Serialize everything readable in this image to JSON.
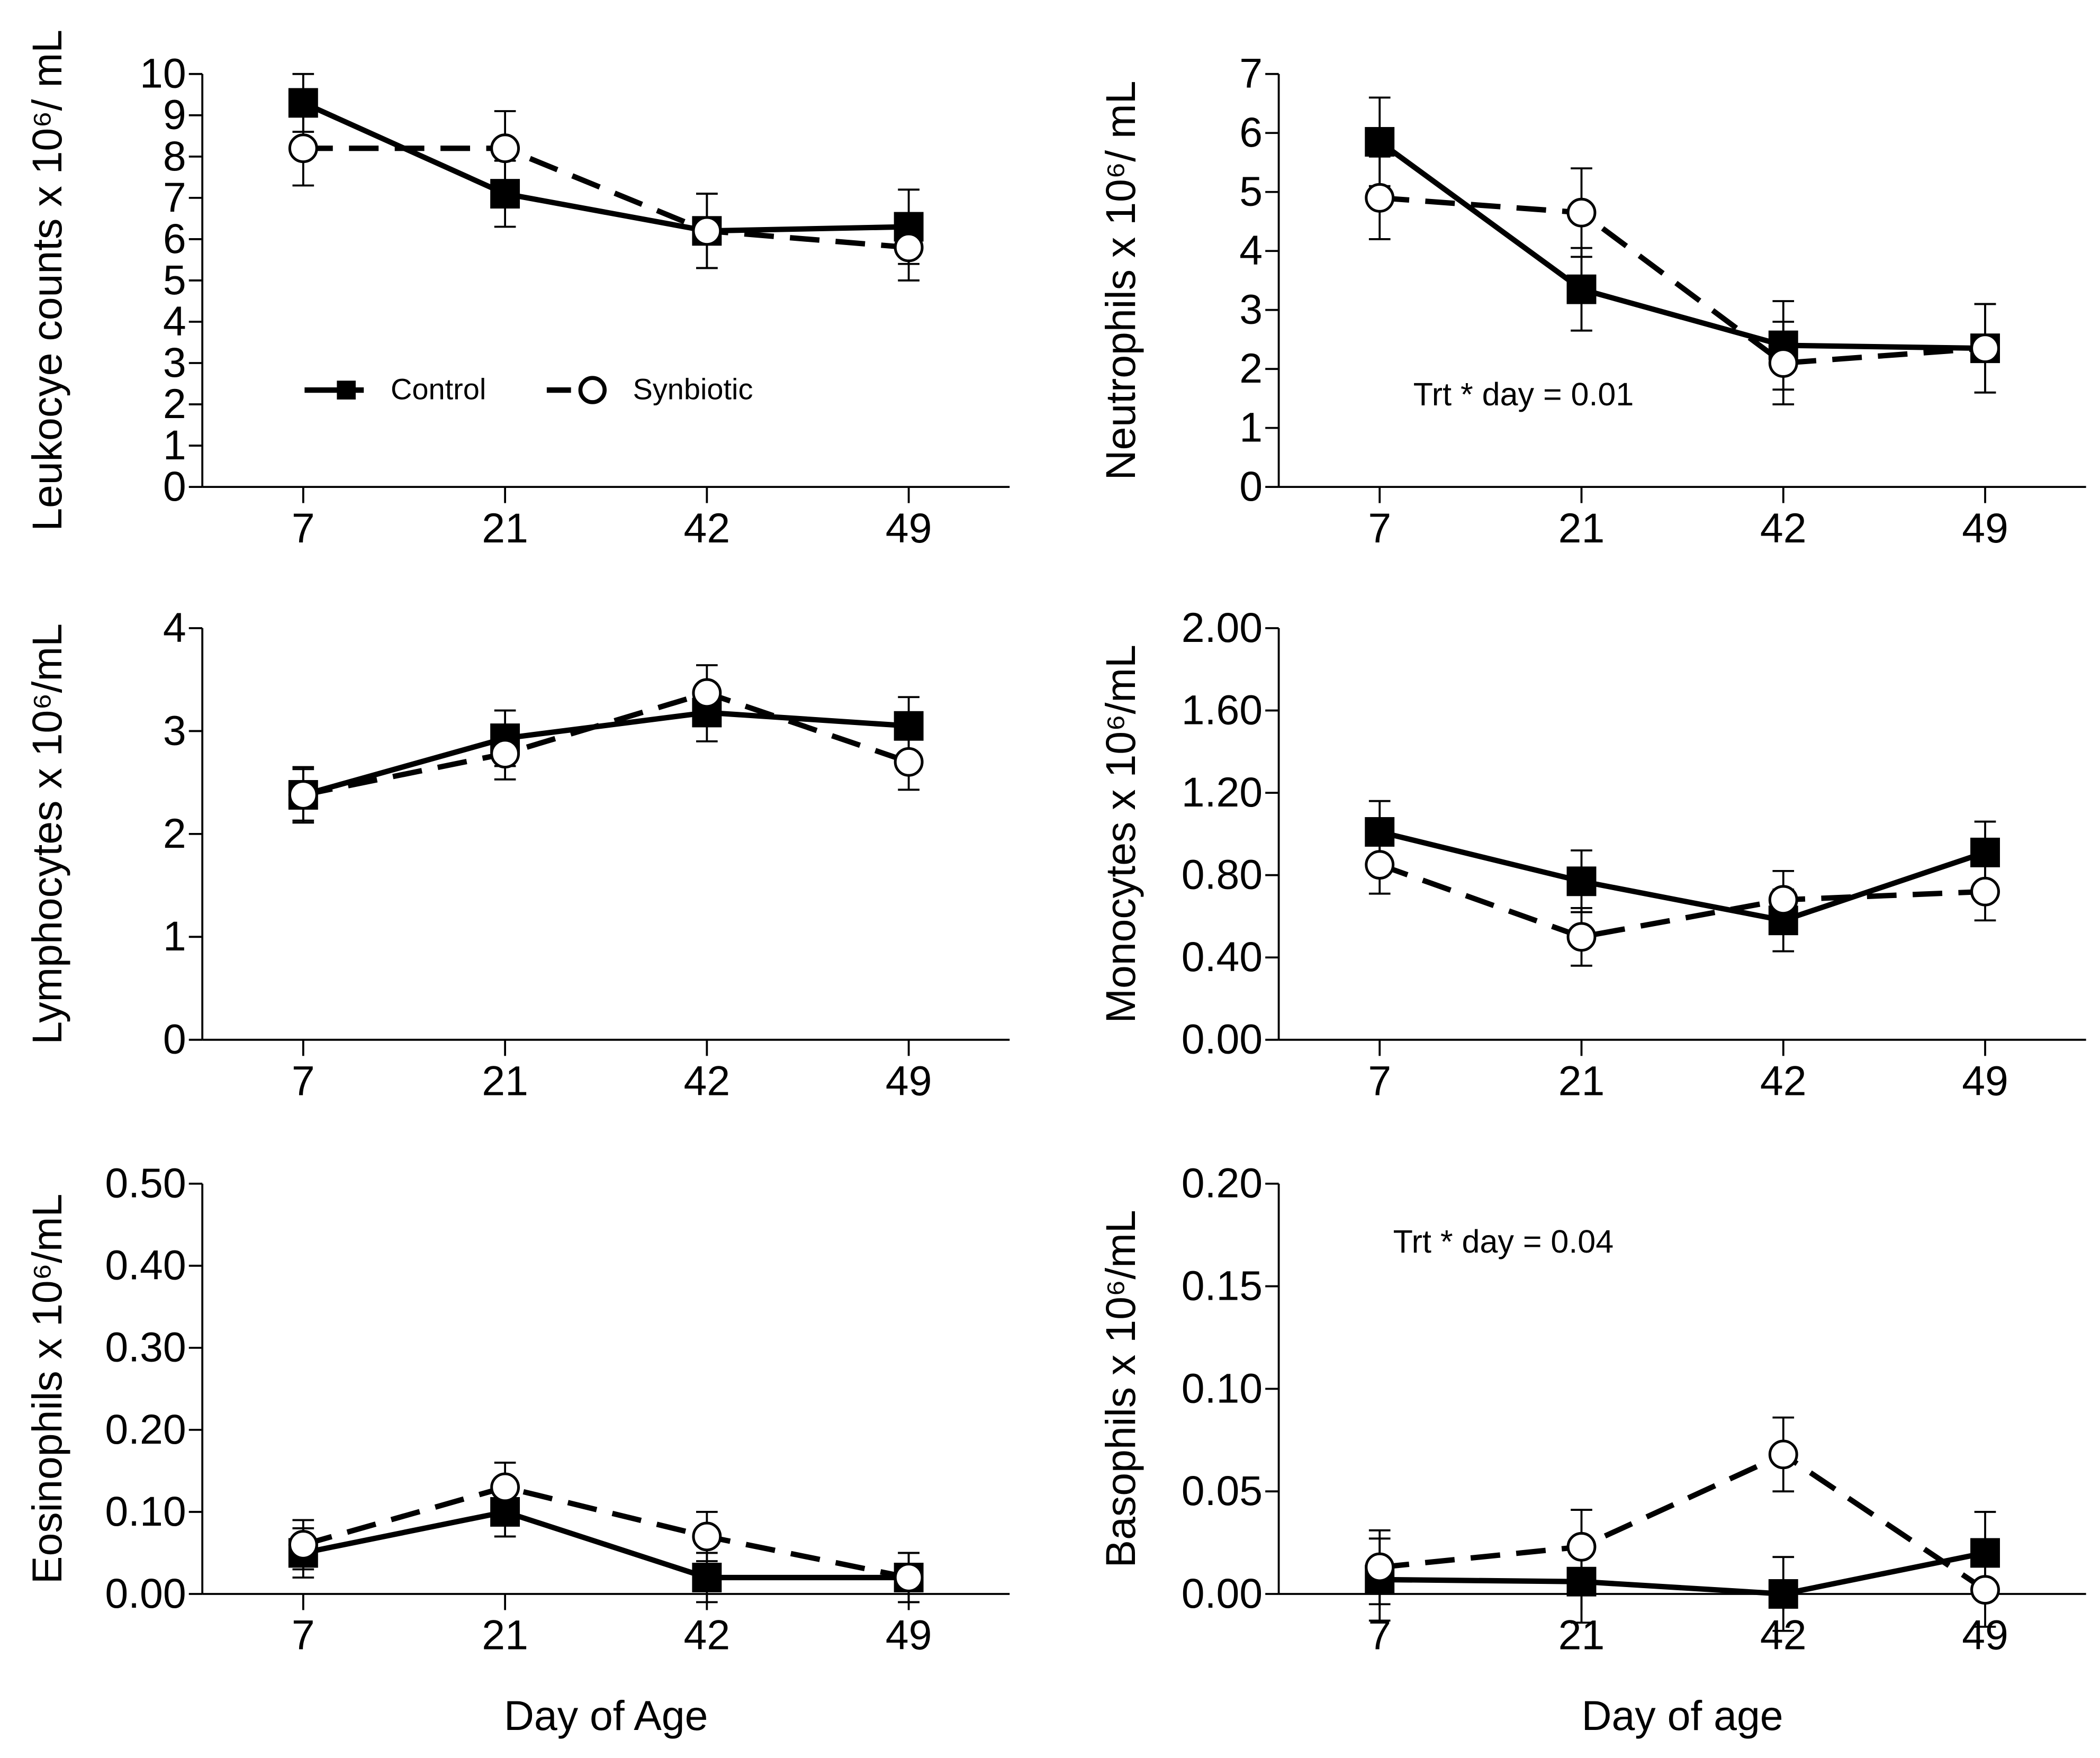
{
  "chart_data": [
    {
      "type": "line",
      "ylabel": "Leukocye counts x 10⁶/ mL",
      "categories": [
        "7",
        "21",
        "42",
        "49"
      ],
      "ylim": [
        0,
        10
      ],
      "yticks": [
        0,
        1,
        2,
        3,
        4,
        5,
        6,
        7,
        8,
        9,
        10
      ],
      "legend": "lower left",
      "series": [
        {
          "name": "Control",
          "color": "#000000",
          "marker": "square",
          "dashed": false,
          "values": [
            9.3,
            7.1,
            6.2,
            6.3
          ],
          "errors": [
            0.7,
            0.8,
            0.9,
            0.9
          ]
        },
        {
          "name": "Synbiotic",
          "color": "#000000",
          "marker": "circle",
          "dashed": true,
          "values": [
            8.2,
            8.2,
            6.2,
            5.8
          ],
          "errors": [
            0.9,
            0.9,
            0.9,
            0.8
          ]
        }
      ]
    },
    {
      "type": "line",
      "ylabel": "Neutrophils x 10⁶/ mL",
      "annotation": "Trt * day = 0.01",
      "categories": [
        "7",
        "21",
        "42",
        "49"
      ],
      "ylim": [
        0,
        7
      ],
      "yticks": [
        0,
        1,
        2,
        3,
        4,
        5,
        6,
        7
      ],
      "series": [
        {
          "name": "Control",
          "color": "#000000",
          "marker": "square",
          "dashed": false,
          "values": [
            5.85,
            3.35,
            2.4,
            2.35
          ],
          "errors": [
            0.75,
            0.7,
            0.75,
            0.75
          ]
        },
        {
          "name": "Synbiotic",
          "color": "#000000",
          "marker": "circle",
          "dashed": true,
          "values": [
            4.9,
            4.65,
            2.1,
            2.35
          ],
          "errors": [
            0.7,
            0.75,
            0.7,
            0.75
          ]
        }
      ]
    },
    {
      "type": "line",
      "ylabel": "Lymphocytes x 10⁶/mL",
      "categories": [
        "7",
        "21",
        "42",
        "49"
      ],
      "ylim": [
        0,
        4
      ],
      "yticks": [
        0,
        1,
        2,
        3,
        4
      ],
      "series": [
        {
          "name": "Control",
          "color": "#000000",
          "marker": "square",
          "dashed": false,
          "values": [
            2.38,
            2.93,
            3.18,
            3.05
          ],
          "errors": [
            0.27,
            0.27,
            0.28,
            0.28
          ]
        },
        {
          "name": "Synbiotic",
          "color": "#000000",
          "marker": "circle",
          "dashed": true,
          "values": [
            2.38,
            2.78,
            3.37,
            2.7
          ],
          "errors": [
            0.25,
            0.25,
            0.27,
            0.27
          ]
        }
      ]
    },
    {
      "type": "line",
      "ylabel": "Monocytes x 10⁶/mL",
      "categories": [
        "7",
        "21",
        "42",
        "49"
      ],
      "ylim": [
        0,
        2
      ],
      "yticks": [
        {
          "value": 0,
          "label": "0.00"
        },
        {
          "value": 0.4,
          "label": "0.40"
        },
        {
          "value": 0.8,
          "label": "0.80"
        },
        {
          "value": 1.2,
          "label": "1.20"
        },
        {
          "value": 1.6,
          "label": "1.60"
        },
        {
          "value": 2,
          "label": "2.00"
        }
      ],
      "series": [
        {
          "name": "Control",
          "color": "#000000",
          "marker": "square",
          "dashed": false,
          "values": [
            1.01,
            0.77,
            0.58,
            0.91
          ],
          "errors": [
            0.15,
            0.15,
            0.15,
            0.15
          ]
        },
        {
          "name": "Synbiotic",
          "color": "#000000",
          "marker": "circle",
          "dashed": true,
          "values": [
            0.85,
            0.5,
            0.68,
            0.72
          ],
          "errors": [
            0.14,
            0.14,
            0.14,
            0.14
          ]
        }
      ]
    },
    {
      "type": "line",
      "ylabel": "Eosinophils x 10⁶/mL",
      "xlabel": "Day of Age",
      "categories": [
        "7",
        "21",
        "42",
        "49"
      ],
      "ylim": [
        0,
        0.5
      ],
      "yticks": [
        {
          "value": 0,
          "label": "0.00"
        },
        {
          "value": 0.1,
          "label": "0.10"
        },
        {
          "value": 0.2,
          "label": "0.20"
        },
        {
          "value": 0.3,
          "label": "0.30"
        },
        {
          "value": 0.4,
          "label": "0.40"
        },
        {
          "value": 0.5,
          "label": "0.50"
        }
      ],
      "series": [
        {
          "name": "Control",
          "color": "#000000",
          "marker": "square",
          "dashed": false,
          "values": [
            0.05,
            0.1,
            0.02,
            0.02
          ],
          "errors": [
            0.03,
            0.03,
            0.03,
            0.03
          ]
        },
        {
          "name": "Synbiotic",
          "color": "#000000",
          "marker": "circle",
          "dashed": true,
          "values": [
            0.06,
            0.13,
            0.07,
            0.02
          ],
          "errors": [
            0.03,
            0.03,
            0.03,
            0.03
          ]
        }
      ]
    },
    {
      "type": "line",
      "ylabel": "Basophils x 10⁶/mL",
      "xlabel": "Day of age",
      "annotation": "Trt * day = 0.04",
      "categories": [
        "7",
        "21",
        "42",
        "49"
      ],
      "ylim": [
        0,
        0.2
      ],
      "yticks": [
        {
          "value": 0,
          "label": "0.00"
        },
        {
          "value": 0.05,
          "label": "0.05"
        },
        {
          "value": 0.1,
          "label": "0.10"
        },
        {
          "value": 0.15,
          "label": "0.15"
        },
        {
          "value": 0.2,
          "label": "0.20"
        }
      ],
      "series": [
        {
          "name": "Control",
          "color": "#000000",
          "marker": "square",
          "dashed": false,
          "values": [
            0.007,
            0.006,
            0,
            0.02
          ],
          "errors": [
            0.02,
            0.02,
            0.018,
            0.02
          ]
        },
        {
          "name": "Synbiotic",
          "color": "#000000",
          "marker": "circle",
          "dashed": true,
          "values": [
            0.013,
            0.023,
            0.068,
            0.002
          ],
          "errors": [
            0.018,
            0.018,
            0.018,
            0.018
          ]
        }
      ]
    }
  ]
}
